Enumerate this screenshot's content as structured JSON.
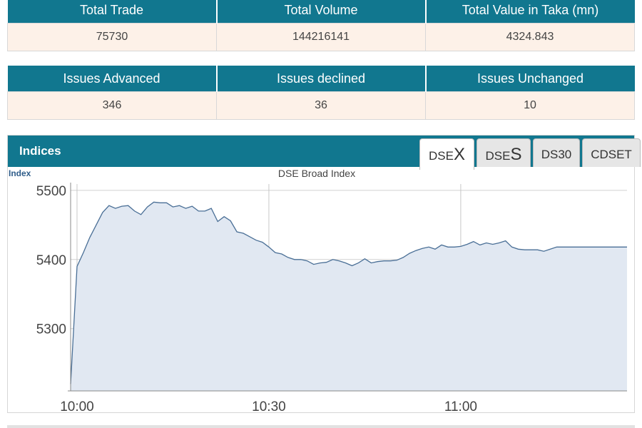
{
  "market_summary": {
    "headers": [
      "Total Trade",
      "Total Volume",
      "Total Value in Taka (mn)"
    ],
    "values": [
      "75730",
      "144216141",
      "4324.843"
    ]
  },
  "issues_summary": {
    "headers": [
      "Issues Advanced",
      "Issues declined",
      "Issues Unchanged"
    ],
    "values": [
      "346",
      "36",
      "10"
    ]
  },
  "indices": {
    "title": "Indices",
    "tabs": [
      {
        "prefix": "DSE",
        "suffix": "X",
        "active": true
      },
      {
        "prefix": "DSE",
        "suffix": "S",
        "active": false
      },
      {
        "prefix": "DS30",
        "suffix": "",
        "active": false
      },
      {
        "prefix": "CDSET",
        "suffix": "",
        "active": false
      }
    ]
  },
  "chart_data": {
    "type": "area",
    "title": "DSE Broad Index",
    "ylabel": "Index",
    "xlabel": "",
    "ylim": [
      5210,
      5505
    ],
    "xlim": [
      "10:00",
      "11:26"
    ],
    "y_ticks": [
      5500,
      5400,
      5300
    ],
    "x_ticks": [
      "10:00",
      "10:30",
      "11:00"
    ],
    "grid": true,
    "fill_color": "#e1e8f2",
    "line_color": "#4a6f96",
    "series": [
      {
        "x": [
          "09:59",
          "10:00",
          "10:01",
          "10:02",
          "10:03",
          "10:04",
          "10:05",
          "10:06",
          "10:07",
          "10:08",
          "10:09",
          "10:10",
          "10:11",
          "10:12",
          "10:13",
          "10:14",
          "10:15",
          "10:16",
          "10:17",
          "10:18",
          "10:19",
          "10:20",
          "10:21",
          "10:22",
          "10:23",
          "10:24",
          "10:25",
          "10:26",
          "10:27",
          "10:28",
          "10:29",
          "10:30",
          "10:31",
          "10:32",
          "10:33",
          "10:34",
          "10:35",
          "10:36",
          "10:37",
          "10:38",
          "10:39",
          "10:40",
          "10:41",
          "10:42",
          "10:43",
          "10:44",
          "10:45",
          "10:46",
          "10:47",
          "10:48",
          "10:49",
          "10:50",
          "10:51",
          "10:52",
          "10:53",
          "10:54",
          "10:55",
          "10:56",
          "10:57",
          "10:58",
          "10:59",
          "11:00",
          "11:01",
          "11:02",
          "11:03",
          "11:04",
          "11:05",
          "11:06",
          "11:07",
          "11:08",
          "11:09",
          "11:10",
          "11:11",
          "11:12",
          "11:13",
          "11:14",
          "11:15",
          "11:16",
          "11:17",
          "11:18",
          "11:19",
          "11:20",
          "11:21",
          "11:22",
          "11:23",
          "11:24",
          "11:25",
          "11:26"
        ],
        "values": [
          5220,
          5390,
          5410,
          5432,
          5450,
          5468,
          5478,
          5474,
          5477,
          5478,
          5470,
          5465,
          5476,
          5483,
          5482,
          5482,
          5476,
          5478,
          5474,
          5477,
          5470,
          5470,
          5474,
          5455,
          5462,
          5456,
          5440,
          5438,
          5433,
          5428,
          5425,
          5418,
          5410,
          5408,
          5403,
          5400,
          5400,
          5398,
          5393,
          5395,
          5396,
          5400,
          5398,
          5395,
          5391,
          5395,
          5401,
          5395,
          5397,
          5398,
          5398,
          5399,
          5403,
          5409,
          5413,
          5416,
          5418,
          5415,
          5421,
          5418,
          5418,
          5419,
          5422,
          5426,
          5421,
          5424,
          5422,
          5424,
          5427,
          5418,
          5415,
          5414,
          5414,
          5414,
          5412,
          5415,
          5418,
          5418,
          5418,
          5418,
          5418,
          5418,
          5418,
          5418,
          5418,
          5418,
          5418,
          5418
        ]
      }
    ]
  }
}
